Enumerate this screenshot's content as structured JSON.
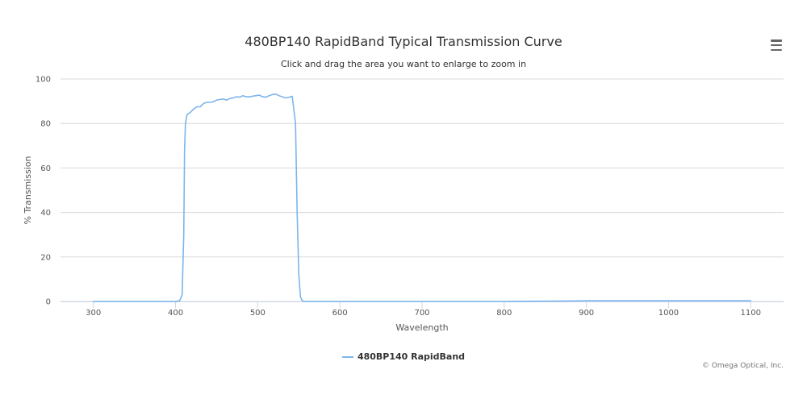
{
  "title": "480BP140 RapidBand Typical Transmission Curve",
  "subtitle": "Click and drag the area you want to enlarge to zoom in",
  "credits": "© Omega Optical, Inc.",
  "menu_icon": "hamburger-menu-icon",
  "colors": {
    "series": "#7cb5ec",
    "grid": "#d8d8d8",
    "axis": "#ccd6eb"
  },
  "chart_data": {
    "type": "line",
    "xlabel": "Wavelength",
    "ylabel": "% Transmission",
    "xlim": [
      260,
      1140
    ],
    "ylim": [
      0,
      100
    ],
    "x_ticks": [
      300,
      400,
      500,
      600,
      700,
      800,
      900,
      1000,
      1100
    ],
    "y_ticks": [
      0,
      20,
      40,
      60,
      80,
      100
    ],
    "grid": true,
    "legend_position": "bottom-center",
    "series": [
      {
        "name": "480BP140 RapidBand",
        "x": [
          300,
          350,
          400,
          405,
          408,
          410,
          411,
          412,
          414,
          418,
          422,
          426,
          430,
          434,
          438,
          442,
          446,
          450,
          454,
          458,
          462,
          466,
          470,
          474,
          478,
          482,
          486,
          490,
          494,
          498,
          502,
          506,
          510,
          514,
          518,
          522,
          526,
          530,
          534,
          538,
          542,
          546,
          548,
          550,
          552,
          554,
          556,
          560,
          600,
          700,
          800,
          880,
          900,
          1000,
          1100
        ],
        "y": [
          0,
          0,
          0,
          0.3,
          3,
          30,
          68,
          80,
          84,
          85,
          86.5,
          87.5,
          87.5,
          89,
          89.5,
          89.5,
          89.8,
          90.5,
          90.8,
          91,
          90.5,
          91.2,
          91.5,
          92,
          91.8,
          92.5,
          92,
          92,
          92.3,
          92.5,
          92.7,
          92,
          91.8,
          92.5,
          93,
          93.2,
          92.5,
          92,
          91.5,
          91.8,
          92.2,
          80,
          40,
          12,
          2,
          0.5,
          0,
          0,
          0,
          0,
          0,
          0.2,
          0.3,
          0.3,
          0.3
        ]
      }
    ]
  }
}
